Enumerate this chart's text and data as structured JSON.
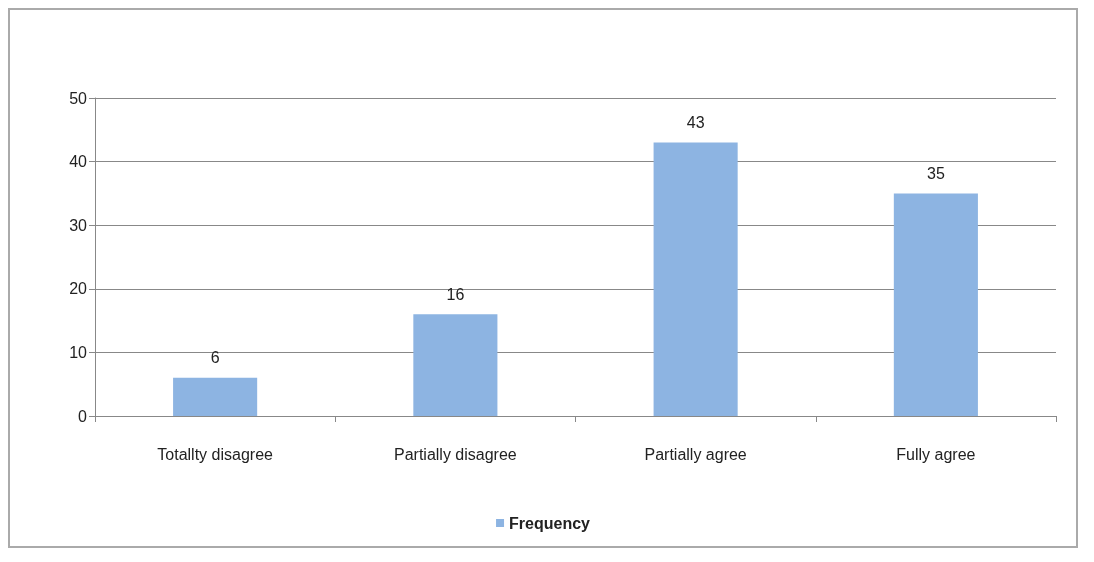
{
  "chart_data": {
    "type": "bar",
    "categories": [
      "Totallty disagree",
      "Partially disagree",
      "Partially agree",
      "Fully agree"
    ],
    "series": [
      {
        "name": "Frequency",
        "color": "#8db4e2",
        "values": [
          6,
          16,
          43,
          35
        ]
      }
    ],
    "ylim": [
      0,
      50
    ],
    "yticks": [
      0,
      10,
      20,
      30,
      40,
      50
    ],
    "grid": "y",
    "legend": "bottom",
    "data_labels": true
  }
}
